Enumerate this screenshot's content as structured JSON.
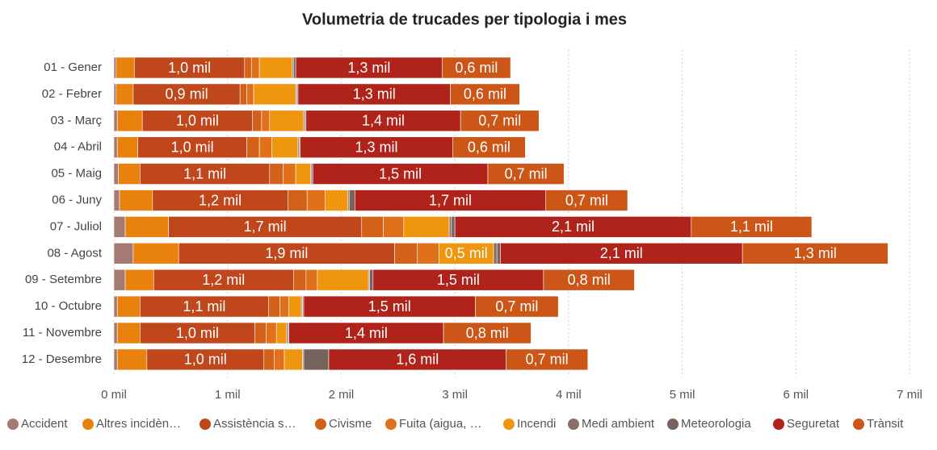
{
  "chart_data": {
    "type": "stacked_bar_horizontal",
    "title": "Volumetria de trucades per tipologia i mes",
    "categories": [
      "01 - Gener",
      "02 - Febrer",
      "03 - Març",
      "04 - Abril",
      "05 - Maig",
      "06 - Juny",
      "07 - Juliol",
      "08 - Agost",
      "09 - Setembre",
      "10 - Octubre",
      "11 - Novembre",
      "12 - Desembre"
    ],
    "series": [
      {
        "name": "Accident",
        "color": "#a57a72",
        "values": [
          0.02,
          0.02,
          0.03,
          0.03,
          0.04,
          0.05,
          0.1,
          0.17,
          0.1,
          0.03,
          0.03,
          0.03
        ]
      },
      {
        "name": "Altres incidèn…",
        "color": "#e8820c",
        "values": [
          0.16,
          0.15,
          0.22,
          0.18,
          0.19,
          0.29,
          0.38,
          0.4,
          0.25,
          0.2,
          0.2,
          0.26
        ]
      },
      {
        "name": "Assistència s…",
        "color": "#c0461b",
        "values": [
          0.97,
          0.94,
          0.97,
          0.96,
          1.14,
          1.19,
          1.7,
          1.9,
          1.23,
          1.13,
          1.01,
          1.03
        ],
        "value_labels": [
          "1,0 mil",
          "0,9 mil",
          "1,0 mil",
          "1,0 mil",
          "1,1 mil",
          "1,2 mil",
          "1,7 mil",
          "1,9 mil",
          "1,2 mil",
          "1,1 mil",
          "1,0 mil",
          "1,0 mil"
        ]
      },
      {
        "name": "Civisme",
        "color": "#d4611a",
        "values": [
          0.06,
          0.06,
          0.08,
          0.11,
          0.12,
          0.17,
          0.19,
          0.2,
          0.11,
          0.1,
          0.1,
          0.09
        ]
      },
      {
        "name": "Fuita (aigua, …",
        "color": "#e0711a",
        "values": [
          0.07,
          0.06,
          0.07,
          0.11,
          0.11,
          0.16,
          0.18,
          0.19,
          0.1,
          0.08,
          0.09,
          0.09
        ]
      },
      {
        "name": "Incendi",
        "color": "#f0960e",
        "values": [
          0.29,
          0.37,
          0.3,
          0.23,
          0.13,
          0.2,
          0.4,
          0.48,
          0.45,
          0.11,
          0.09,
          0.16
        ],
        "value_labels": [
          null,
          null,
          null,
          null,
          null,
          null,
          null,
          "0,5 mil",
          null,
          null,
          null,
          null
        ]
      },
      {
        "name": "Medi ambient",
        "color": "#8c6e68",
        "values": [
          0.01,
          0.01,
          0.01,
          0.01,
          0.01,
          0.01,
          0.02,
          0.03,
          0.01,
          0.01,
          0.01,
          0.01
        ]
      },
      {
        "name": "Meteorologia",
        "color": "#76635e",
        "values": [
          0.02,
          0.01,
          0.01,
          0.01,
          0.01,
          0.05,
          0.03,
          0.03,
          0.03,
          0.01,
          0.01,
          0.22
        ]
      },
      {
        "name": "Seguretat",
        "color": "#b0231a",
        "values": [
          1.29,
          1.34,
          1.36,
          1.34,
          1.54,
          1.68,
          2.08,
          2.13,
          1.5,
          1.51,
          1.36,
          1.56
        ],
        "value_labels": [
          "1,3 mil",
          "1,3 mil",
          "1,4 mil",
          "1,3 mil",
          "1,5 mil",
          "1,7 mil",
          "2,1 mil",
          "2,1 mil",
          "1,5 mil",
          "1,5 mil",
          "1,4 mil",
          "1,6 mil"
        ]
      },
      {
        "name": "Trànsit",
        "color": "#cc5518",
        "values": [
          0.6,
          0.61,
          0.69,
          0.64,
          0.67,
          0.72,
          1.06,
          1.28,
          0.8,
          0.73,
          0.77,
          0.72
        ],
        "value_labels": [
          "0,6 mil",
          "0,6 mil",
          "0,7 mil",
          "0,6 mil",
          "0,7 mil",
          "0,7 mil",
          "1,1 mil",
          "1,3 mil",
          "0,8 mil",
          "0,7 mil",
          "0,8 mil",
          "0,7 mil"
        ]
      }
    ],
    "xlim": [
      0,
      7
    ],
    "xticks": [
      {
        "value": 0,
        "label": "0 mil"
      },
      {
        "value": 1,
        "label": "1 mil"
      },
      {
        "value": 2,
        "label": "2 mil"
      },
      {
        "value": 3,
        "label": "3 mil"
      },
      {
        "value": 4,
        "label": "4 mil"
      },
      {
        "value": 5,
        "label": "5 mil"
      },
      {
        "value": 6,
        "label": "6 mil"
      },
      {
        "value": 7,
        "label": "7 mil"
      }
    ],
    "grid": true,
    "legend": "bottom"
  }
}
